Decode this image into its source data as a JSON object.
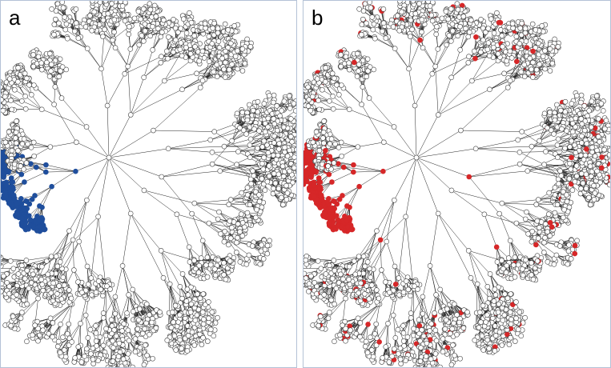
{
  "panels": [
    {
      "label": "a",
      "highlight_color": "#1f4e9c"
    },
    {
      "label": "b",
      "highlight_color": "#d62728"
    }
  ]
}
